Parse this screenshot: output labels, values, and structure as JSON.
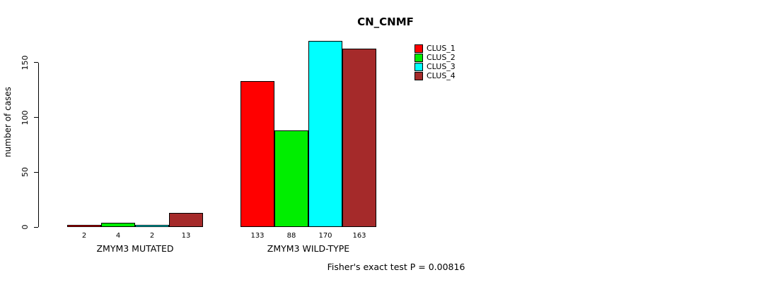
{
  "chart_data": {
    "type": "bar",
    "title": "CN_CNMF",
    "ylabel": "number of cases",
    "xlabel": "",
    "categories": [
      "ZMYM3 MUTATED",
      "ZMYM3 WILD-TYPE"
    ],
    "series": [
      {
        "name": "CLUS_1",
        "color": "#ff0000",
        "values": [
          2,
          133
        ]
      },
      {
        "name": "CLUS_2",
        "color": "#00ee00",
        "values": [
          4,
          88
        ]
      },
      {
        "name": "CLUS_3",
        "color": "#00ffff",
        "values": [
          2,
          170
        ]
      },
      {
        "name": "CLUS_4",
        "color": "#a52a2a",
        "values": [
          13,
          163
        ]
      }
    ],
    "yticks": [
      0,
      50,
      100,
      150
    ],
    "ylim": [
      0,
      175
    ],
    "grid": false,
    "legend_position": "top-right",
    "bar_value_labels": true,
    "annotation": "Fisher's exact test P = 0.00816"
  }
}
